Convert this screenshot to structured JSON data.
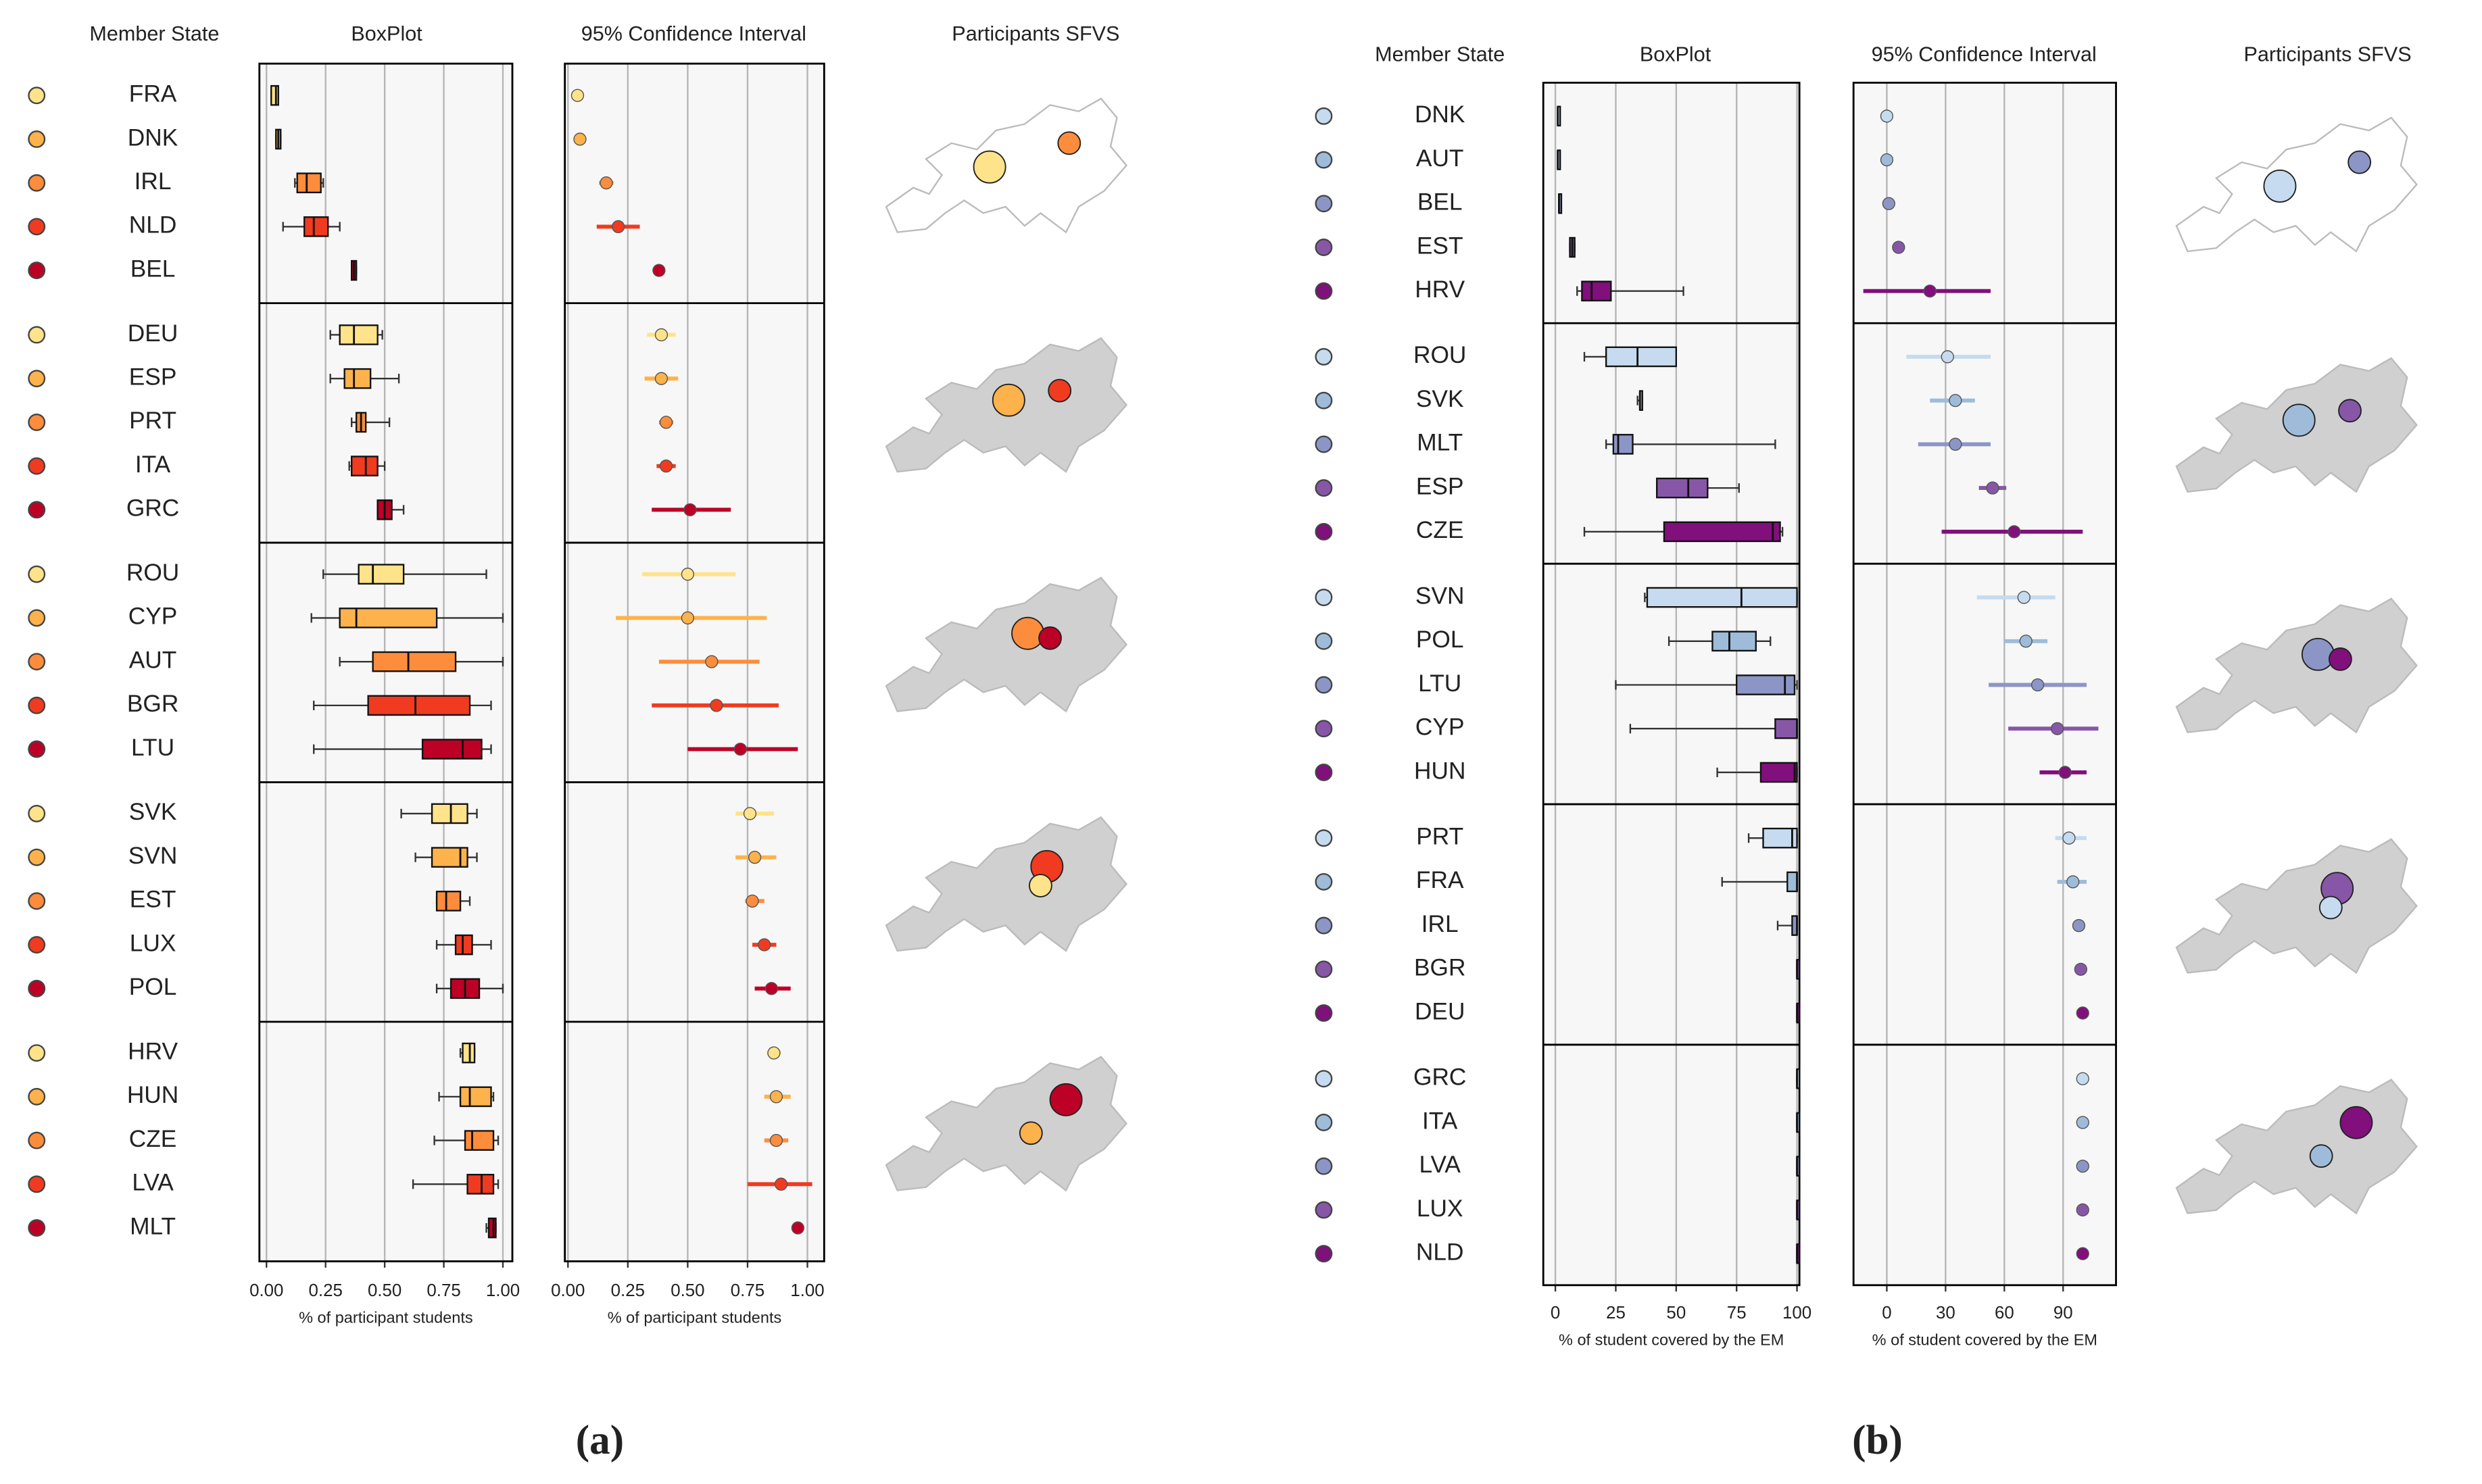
{
  "chart_data": [
    {
      "type": "boxplot",
      "column_titles": [
        "Member State",
        "BoxPlot",
        "95% Confidence Interval",
        "Participants SFVS"
      ],
      "xlabel": "% of participant students",
      "panel_label": "(a)",
      "colors": [
        "#ffe38a",
        "#feb24c",
        "#fd8d3c",
        "#f03b20",
        "#bd0026"
      ],
      "categories": [
        "FRA",
        "DNK",
        "IRL",
        "NLD",
        "BEL",
        "DEU",
        "ESP",
        "PRT",
        "ITA",
        "GRC",
        "ROU",
        "CYP",
        "AUT",
        "BGR",
        "LTU",
        "SVK",
        "SVN",
        "EST",
        "LUX",
        "POL",
        "HRV",
        "HUN",
        "CZE",
        "LVA",
        "MLT"
      ],
      "boxes": [
        [
          0.02,
          0.02,
          0.04,
          0.05,
          0.05
        ],
        [
          0.04,
          0.04,
          0.05,
          0.06,
          0.06
        ],
        [
          0.12,
          0.13,
          0.17,
          0.23,
          0.24
        ],
        [
          0.07,
          0.16,
          0.2,
          0.26,
          0.31
        ],
        [
          0.36,
          0.36,
          0.37,
          0.38,
          0.38
        ],
        [
          0.27,
          0.31,
          0.37,
          0.47,
          0.49
        ],
        [
          0.27,
          0.33,
          0.37,
          0.44,
          0.56
        ],
        [
          0.36,
          0.38,
          0.4,
          0.42,
          0.52
        ],
        [
          0.35,
          0.36,
          0.42,
          0.47,
          0.5
        ],
        [
          0.47,
          0.47,
          0.5,
          0.53,
          0.58
        ],
        [
          0.24,
          0.39,
          0.45,
          0.58,
          0.93
        ],
        [
          0.19,
          0.31,
          0.38,
          0.72,
          1.0
        ],
        [
          0.31,
          0.45,
          0.6,
          0.8,
          1.0
        ],
        [
          0.2,
          0.43,
          0.63,
          0.86,
          0.95
        ],
        [
          0.2,
          0.66,
          0.83,
          0.91,
          0.95
        ],
        [
          0.57,
          0.7,
          0.78,
          0.85,
          0.89
        ],
        [
          0.63,
          0.7,
          0.82,
          0.85,
          0.89
        ],
        [
          0.72,
          0.72,
          0.76,
          0.82,
          0.86
        ],
        [
          0.72,
          0.8,
          0.83,
          0.87,
          0.95
        ],
        [
          0.72,
          0.78,
          0.84,
          0.9,
          1.0
        ],
        [
          0.82,
          0.83,
          0.86,
          0.88,
          0.88
        ],
        [
          0.73,
          0.82,
          0.86,
          0.95,
          0.96
        ],
        [
          0.71,
          0.84,
          0.87,
          0.96,
          0.98
        ],
        [
          0.62,
          0.85,
          0.91,
          0.96,
          0.98
        ],
        [
          0.93,
          0.94,
          0.96,
          0.97,
          0.97
        ]
      ],
      "ci": [
        [
          0.03,
          0.04,
          0.05
        ],
        [
          0.04,
          0.05,
          0.06
        ],
        [
          0.13,
          0.16,
          0.19
        ],
        [
          0.12,
          0.21,
          0.3
        ],
        [
          0.37,
          0.38,
          0.39
        ],
        [
          0.33,
          0.39,
          0.45
        ],
        [
          0.32,
          0.39,
          0.46
        ],
        [
          0.38,
          0.41,
          0.44
        ],
        [
          0.37,
          0.41,
          0.45
        ],
        [
          0.35,
          0.51,
          0.68
        ],
        [
          0.31,
          0.5,
          0.7
        ],
        [
          0.2,
          0.5,
          0.83
        ],
        [
          0.38,
          0.6,
          0.8
        ],
        [
          0.35,
          0.62,
          0.88
        ],
        [
          0.5,
          0.72,
          0.96
        ],
        [
          0.7,
          0.76,
          0.86
        ],
        [
          0.7,
          0.78,
          0.87
        ],
        [
          0.74,
          0.77,
          0.82
        ],
        [
          0.77,
          0.82,
          0.87
        ],
        [
          0.78,
          0.85,
          0.93
        ],
        [
          0.83,
          0.86,
          0.89
        ],
        [
          0.82,
          0.87,
          0.93
        ],
        [
          0.82,
          0.87,
          0.92
        ],
        [
          0.75,
          0.89,
          1.02
        ],
        [
          0.95,
          0.96,
          0.97
        ]
      ],
      "xlim": [
        -0.03,
        1.04
      ],
      "xticks": [
        {
          "value": 0,
          "label": "0.00"
        },
        {
          "value": 0.25,
          "label": "0.25"
        },
        {
          "value": 0.5,
          "label": "0.50"
        },
        {
          "value": 0.75,
          "label": "0.75"
        },
        {
          "value": 1,
          "label": "1.00"
        }
      ],
      "ci_xlim": [
        -0.013,
        1.07
      ],
      "ci_xticks": [
        {
          "value": 0,
          "label": "0.00"
        },
        {
          "value": 0.25,
          "label": "0.25"
        },
        {
          "value": 0.5,
          "label": "0.50"
        },
        {
          "value": 0.75,
          "label": "0.75"
        },
        {
          "value": 1,
          "label": "1.00"
        }
      ],
      "grid": true
    },
    {
      "type": "boxplot",
      "column_titles": [
        "Member State",
        "BoxPlot",
        "95% Confidence Interval",
        "Participants SFVS"
      ],
      "xlabel": "% of student covered by the EM",
      "panel_label": "(b)",
      "colors": [
        "#c6dbef",
        "#9ebcda",
        "#8c96c6",
        "#8856a7",
        "#810f7c"
      ],
      "categories": [
        "DNK",
        "AUT",
        "BEL",
        "EST",
        "HRV",
        "ROU",
        "SVK",
        "MLT",
        "ESP",
        "CZE",
        "SVN",
        "POL",
        "LTU",
        "CYP",
        "HUN",
        "PRT",
        "FRA",
        "IRL",
        "BGR",
        "DEU",
        "GRC",
        "ITA",
        "LVA",
        "LUX",
        "NLD"
      ],
      "boxes": [
        [
          1,
          1,
          1,
          1,
          1
        ],
        [
          1,
          1,
          1,
          1,
          1
        ],
        [
          1.5,
          1.5,
          1.5,
          1.5,
          1.5
        ],
        [
          6,
          6,
          7,
          8,
          8
        ],
        [
          9,
          11,
          15,
          23,
          53
        ],
        [
          12,
          21,
          34,
          50,
          50
        ],
        [
          34,
          35,
          35,
          36,
          36
        ],
        [
          21,
          24,
          26,
          32,
          91
        ],
        [
          42,
          42,
          55,
          63,
          76
        ],
        [
          12,
          45,
          90,
          93,
          94
        ],
        [
          37,
          38,
          77,
          100,
          100
        ],
        [
          47,
          65,
          72,
          83,
          89
        ],
        [
          25,
          75,
          95,
          99,
          100
        ],
        [
          31,
          91,
          100,
          100,
          100
        ],
        [
          67,
          85,
          99,
          100,
          100
        ],
        [
          80,
          86,
          98,
          100,
          100
        ],
        [
          69,
          96,
          100,
          100,
          100
        ],
        [
          92,
          98,
          100,
          100,
          100
        ],
        [
          100,
          100,
          100,
          100,
          100
        ],
        [
          100,
          100,
          100,
          100,
          100
        ],
        [
          100,
          100,
          100,
          100,
          100
        ],
        [
          100,
          100,
          100,
          100,
          100
        ],
        [
          100,
          100,
          100,
          100,
          100
        ],
        [
          100,
          100,
          100,
          100,
          100
        ],
        [
          100,
          100,
          100,
          100,
          100
        ]
      ],
      "ci": [
        [
          0,
          0,
          0
        ],
        [
          0,
          0,
          0
        ],
        [
          1,
          1,
          1
        ],
        [
          5,
          6,
          7
        ],
        [
          -12,
          22,
          53
        ],
        [
          10,
          31,
          53
        ],
        [
          22,
          35,
          45
        ],
        [
          16,
          35,
          53
        ],
        [
          47,
          54,
          61
        ],
        [
          28,
          65,
          100
        ],
        [
          46,
          70,
          86
        ],
        [
          60,
          71,
          82
        ],
        [
          52,
          77,
          102
        ],
        [
          62,
          87,
          108
        ],
        [
          78,
          91,
          102
        ],
        [
          86,
          93,
          102
        ],
        [
          87,
          95,
          102
        ],
        [
          97,
          98,
          99
        ],
        [
          98,
          99,
          100
        ],
        [
          99,
          100,
          101
        ],
        [
          99,
          100,
          101
        ],
        [
          99,
          100,
          101
        ],
        [
          99,
          100,
          101
        ],
        [
          99,
          100,
          101
        ],
        [
          99,
          100,
          101
        ]
      ],
      "xlim": [
        -5,
        101
      ],
      "xticks": [
        0,
        25,
        50,
        75,
        100
      ],
      "ci_xlim": [
        -17,
        117
      ],
      "ci_xticks": [
        0,
        30,
        60,
        90
      ],
      "grid": true
    }
  ]
}
